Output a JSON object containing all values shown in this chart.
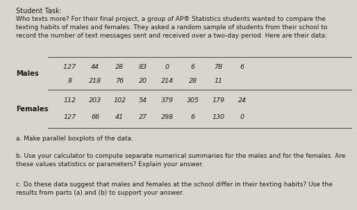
{
  "title": "Student Task:",
  "intro": "Who texts more? For their final project, a group of AP® Statistics students wanted to compare the\ntexting habits of males and females. They asked a random sample of students from their school to\nrecord the number of text messages sent and received over a two-day period. Here are their data:",
  "males_row1": [
    "1​27",
    "44",
    "28",
    "83",
    "0",
    "6",
    "78",
    "6"
  ],
  "males_row2": [
    "8",
    "218",
    "76",
    "20",
    "214",
    "28",
    "11"
  ],
  "females_row1": [
    "112",
    "203",
    "102",
    "54",
    "379",
    "305",
    "179",
    "24"
  ],
  "females_row2": [
    "127",
    "66",
    "41",
    "27",
    "298",
    "6",
    "130",
    "0"
  ],
  "question_a": "a. Make parallel boxplots of the data.",
  "question_b": "b. Use your calculator to compute separate numerical summaries for the males and for the females. Are\nthese values statistics or parameters? Explain your answer.",
  "question_c": "c. Do these data suggest that males and females at the school differ in their texting habits? Use the\nresults from parts (a) and (b) to support your answer.",
  "bg_color": "#d9d5cc",
  "text_color": "#1a1a1a",
  "line_color": "#444444",
  "males_label": "Males",
  "females_label": "Females",
  "title_fontsize": 7.0,
  "intro_fontsize": 6.5,
  "data_fontsize": 6.8,
  "label_fontsize": 7.2,
  "question_fontsize": 6.5
}
